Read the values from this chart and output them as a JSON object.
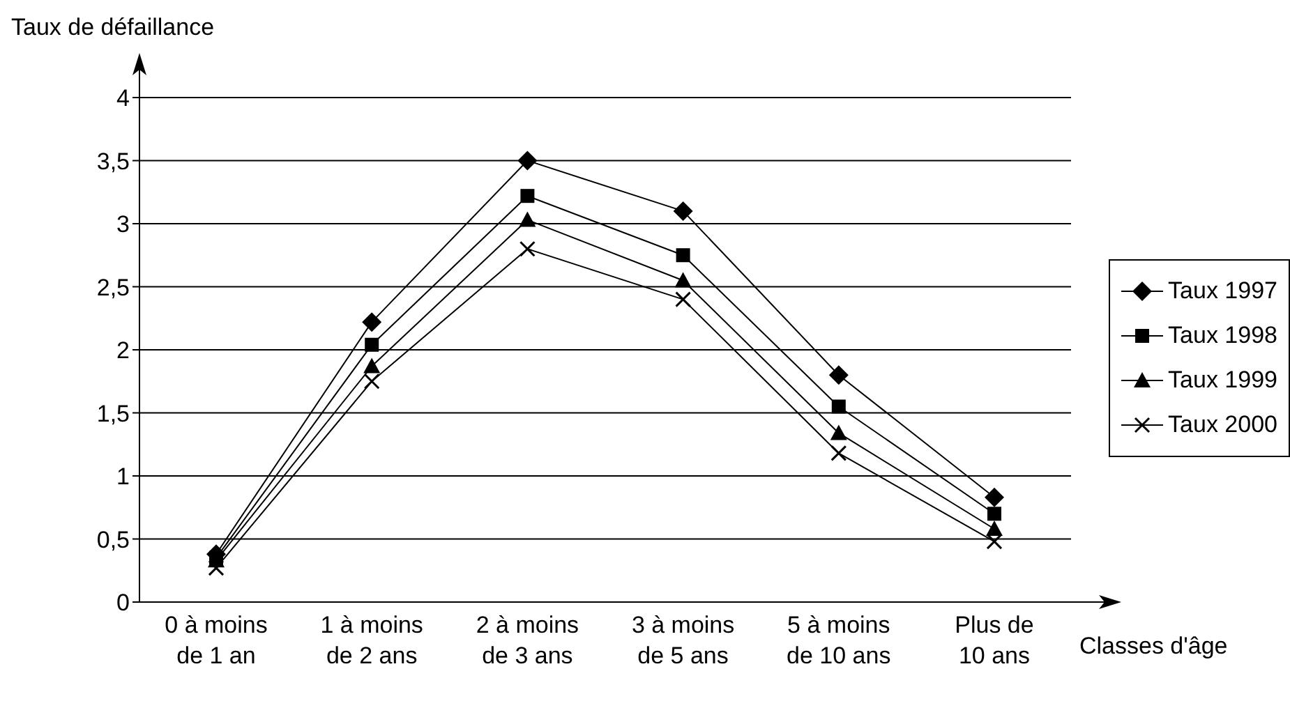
{
  "chart_data": {
    "type": "line",
    "ylabel": "Taux de défaillance",
    "xlabel": "Classes d'âge",
    "categories": [
      "0 à moins de 1 an",
      "1 à moins de 2 ans",
      "2 à moins de 3 ans",
      "3 à moins de 5 ans",
      "5 à moins de 10 ans",
      "Plus de 10 ans"
    ],
    "series": [
      {
        "name": "Taux 1997",
        "color": "#000000",
        "marker": "diamond",
        "values": [
          0.38,
          2.22,
          3.5,
          3.1,
          1.8,
          0.83
        ]
      },
      {
        "name": "Taux 1998",
        "color": "#000000",
        "marker": "square",
        "values": [
          0.35,
          2.04,
          3.22,
          2.75,
          1.55,
          0.7
        ]
      },
      {
        "name": "Taux 1999",
        "color": "#000000",
        "marker": "triangle",
        "values": [
          0.33,
          1.87,
          3.03,
          2.55,
          1.34,
          0.58
        ]
      },
      {
        "name": "Taux 2000",
        "color": "#000000",
        "marker": "cross",
        "values": [
          0.27,
          1.75,
          2.8,
          2.4,
          1.18,
          0.48
        ]
      }
    ],
    "ylim": [
      0,
      4
    ],
    "yticks": [
      0,
      {
        "value": 0.5,
        "label": "0,5"
      },
      1,
      {
        "value": 1.5,
        "label": "1,5"
      },
      2,
      {
        "value": 2.5,
        "label": "2,5"
      },
      3,
      {
        "value": 3.5,
        "label": "3,5"
      },
      4
    ],
    "grid": "y",
    "legend": "right"
  }
}
